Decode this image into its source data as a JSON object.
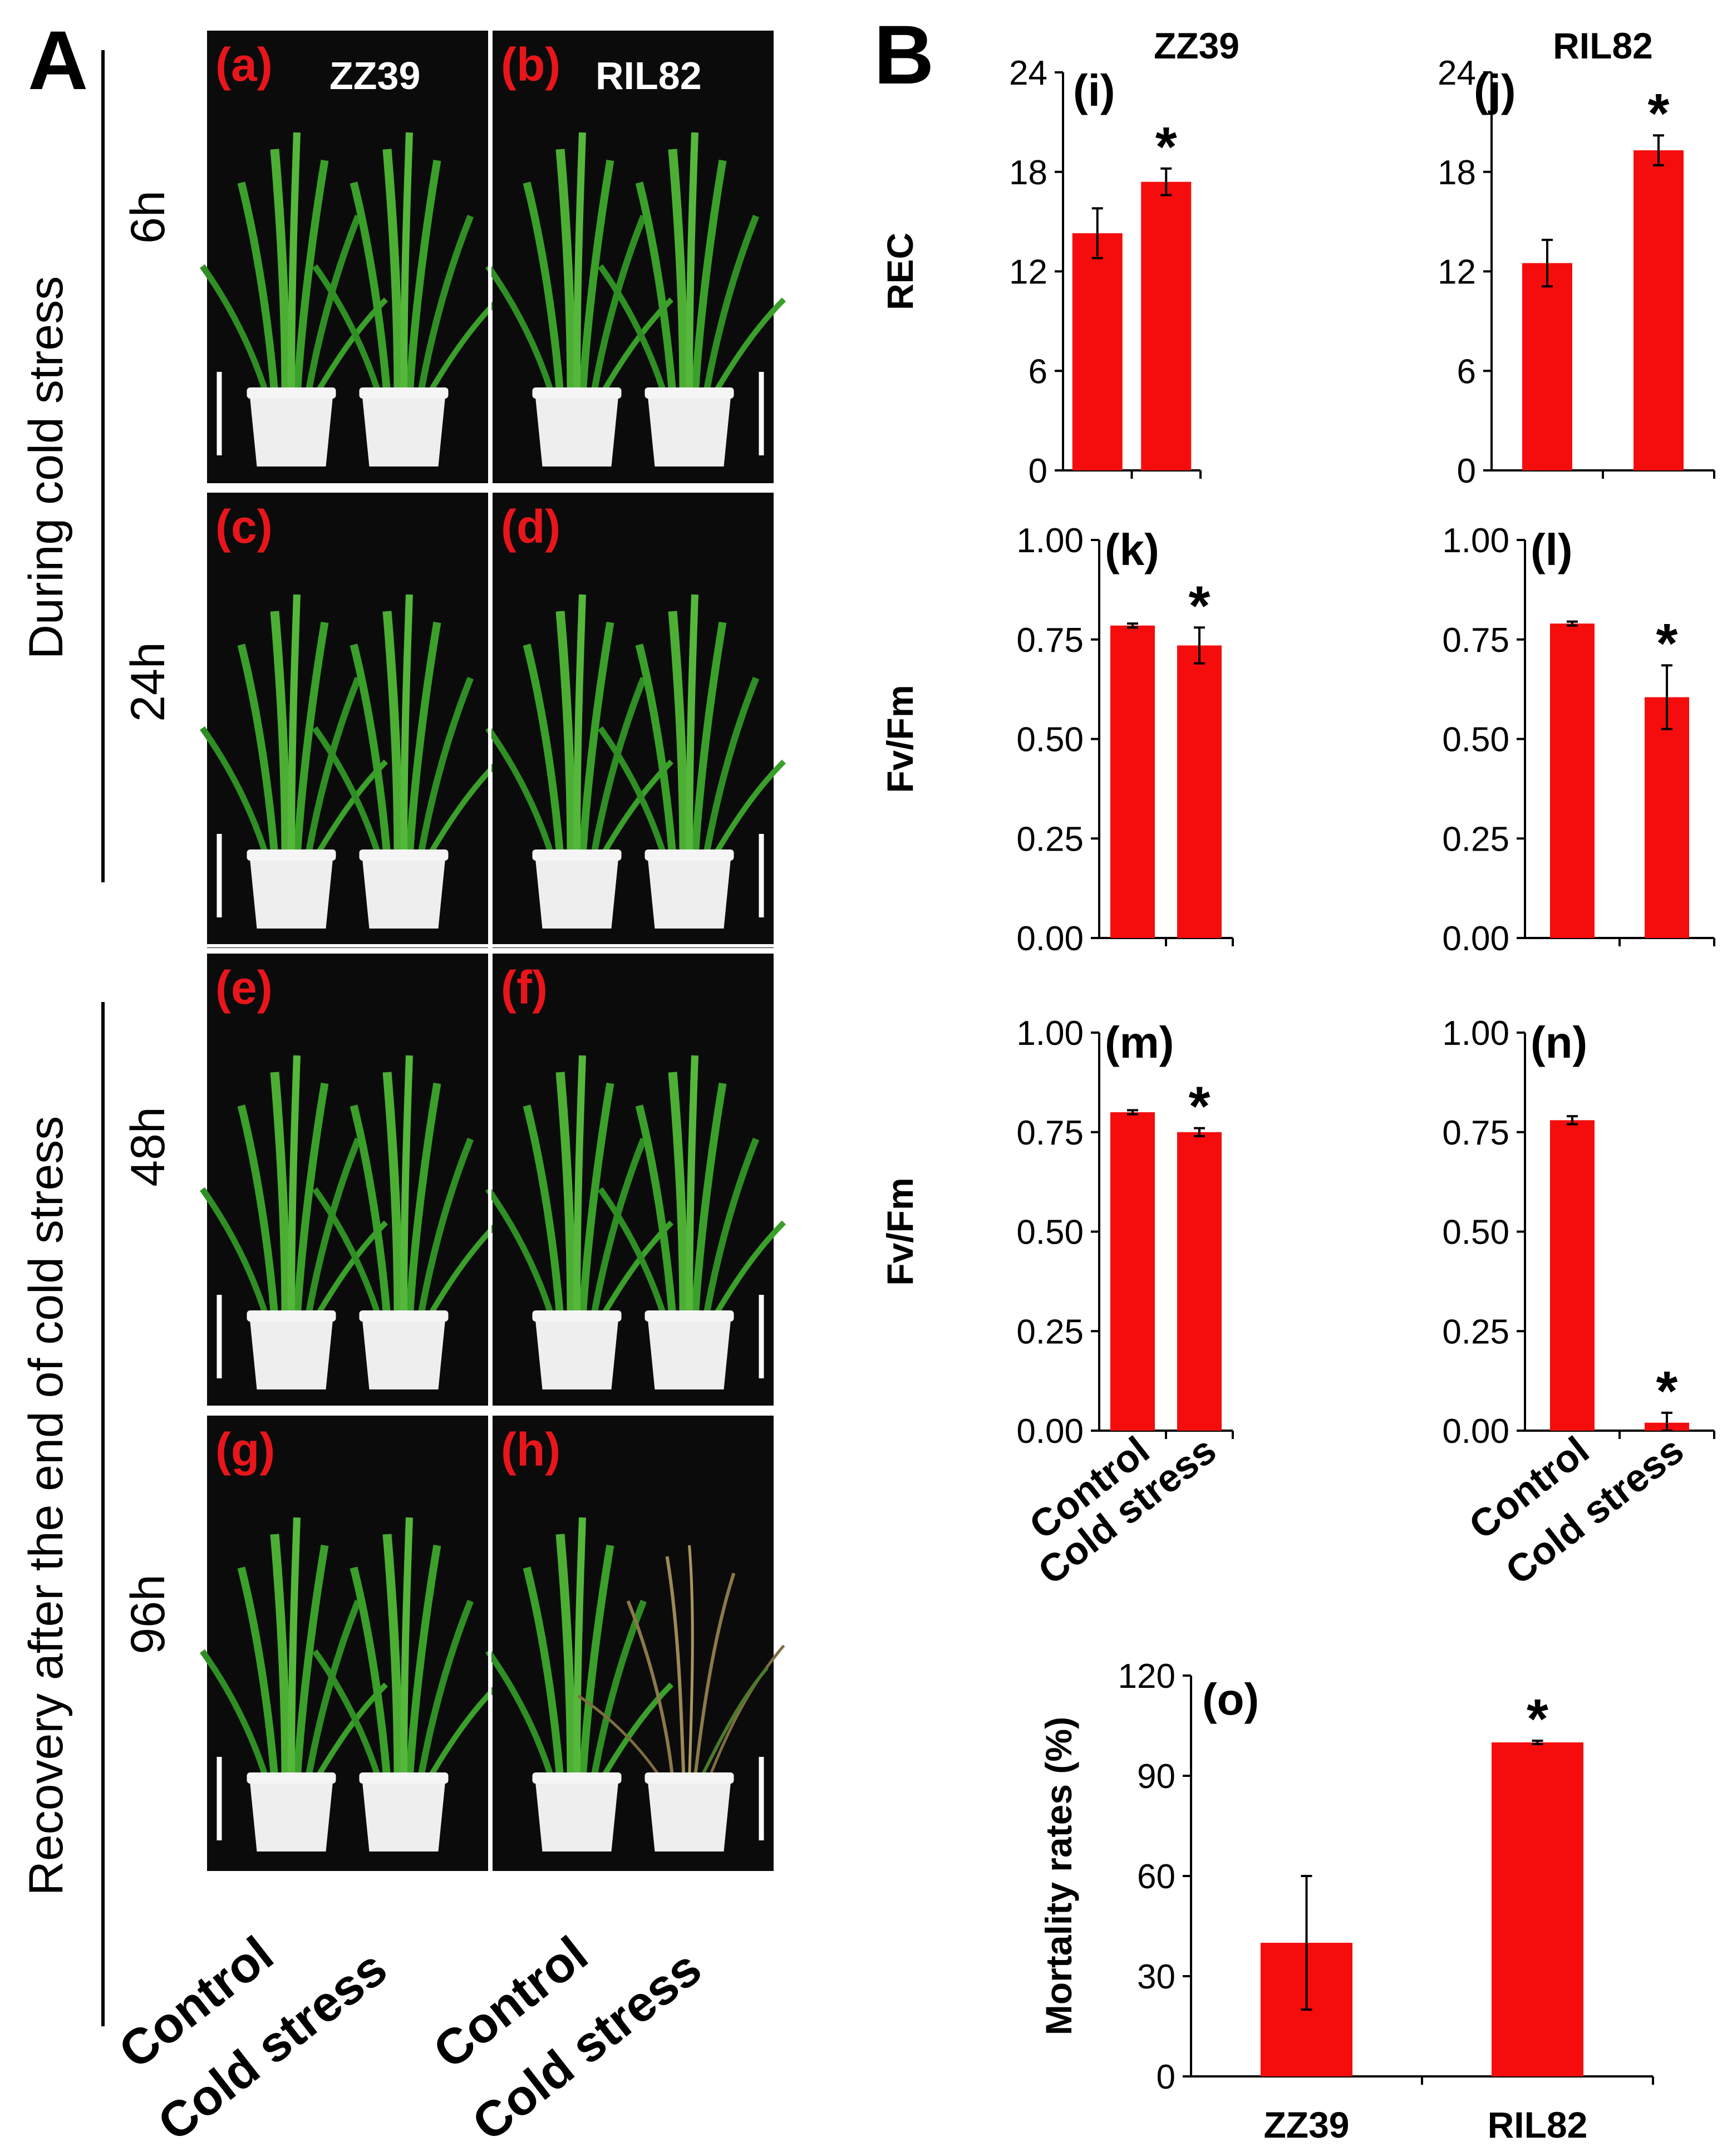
{
  "panel_labels": {
    "A": "A",
    "B": "B"
  },
  "panel_a": {
    "time_groups": [
      {
        "label": "During cold stress",
        "times": [
          "6h",
          "24h"
        ]
      },
      {
        "label": "Recovery after the end of cold stress",
        "times": [
          "48h",
          "96h"
        ]
      }
    ],
    "column_titles": [
      "ZZ39",
      "RIL82"
    ],
    "photo_labels": [
      "(a)",
      "(b)",
      "(c)",
      "(d)",
      "(e)",
      "(f)",
      "(g)",
      "(h)"
    ],
    "x_labels": [
      [
        "Control",
        "Cold stress"
      ],
      [
        "Control",
        "Cold stress"
      ]
    ]
  },
  "colors": {
    "bar": "#f50d0d",
    "label_red": "#e8161b",
    "photo_bg": "#0b0b0b",
    "leaf": "#3a9a2a",
    "pot": "#eeeeee",
    "scale_bar": "#ffffff"
  },
  "chart_data": [
    {
      "id": "i",
      "label": "(i)",
      "type": "bar",
      "title": "ZZ39",
      "ylabel": "REC",
      "categories": [
        "Control",
        "Cold stress"
      ],
      "values": [
        14.3,
        17.4
      ],
      "errors": [
        1.5,
        0.8
      ],
      "significant": [
        false,
        true
      ],
      "significance_marker": "*",
      "ylim": [
        0,
        24
      ],
      "yticks": [
        "0",
        "6",
        "12",
        "18",
        "24"
      ]
    },
    {
      "id": "j",
      "label": "(j)",
      "type": "bar",
      "title": "RIL82",
      "ylabel": "",
      "categories": [
        "Control",
        "Cold stress"
      ],
      "values": [
        12.5,
        19.3
      ],
      "errors": [
        1.4,
        0.9
      ],
      "significant": [
        false,
        true
      ],
      "significance_marker": "*",
      "ylim": [
        0,
        24
      ],
      "yticks": [
        "0",
        "6",
        "12",
        "18",
        "24"
      ]
    },
    {
      "id": "k",
      "label": "(k)",
      "type": "bar",
      "title": "",
      "ylabel": "Fv/Fm",
      "categories": [
        "Control",
        "Cold stress"
      ],
      "values": [
        0.785,
        0.735
      ],
      "errors": [
        0.005,
        0.045
      ],
      "significant": [
        false,
        true
      ],
      "significance_marker": "*",
      "ylim": [
        0,
        1
      ],
      "yticks": [
        "0.00",
        "0.25",
        "0.50",
        "0.75",
        "1.00"
      ]
    },
    {
      "id": "l",
      "label": "(l)",
      "type": "bar",
      "title": "",
      "ylabel": "",
      "categories": [
        "Control",
        "Cold stress"
      ],
      "values": [
        0.79,
        0.605
      ],
      "errors": [
        0.005,
        0.08
      ],
      "significant": [
        false,
        true
      ],
      "significance_marker": "*",
      "ylim": [
        0,
        1
      ],
      "yticks": [
        "0.00",
        "0.25",
        "0.50",
        "0.75",
        "1.00"
      ]
    },
    {
      "id": "m",
      "label": "(m)",
      "type": "bar",
      "title": "",
      "ylabel": "Fv/Fm",
      "categories": [
        "Control",
        "Cold stress"
      ],
      "values": [
        0.8,
        0.75
      ],
      "errors": [
        0.005,
        0.01
      ],
      "significant": [
        false,
        true
      ],
      "significance_marker": "*",
      "ylim": [
        0,
        1
      ],
      "yticks": [
        "0.00",
        "0.25",
        "0.50",
        "0.75",
        "1.00"
      ],
      "x_tick_labels": [
        "Control",
        "Cold stress"
      ]
    },
    {
      "id": "n",
      "label": "(n)",
      "type": "bar",
      "title": "",
      "ylabel": "",
      "categories": [
        "Control",
        "Cold stress"
      ],
      "values": [
        0.78,
        0.02
      ],
      "errors": [
        0.01,
        0.025
      ],
      "significant": [
        false,
        true
      ],
      "significance_marker": "*",
      "ylim": [
        0,
        1
      ],
      "yticks": [
        "0.00",
        "0.25",
        "0.50",
        "0.75",
        "1.00"
      ],
      "x_tick_labels": [
        "Control",
        "Cold stress"
      ]
    },
    {
      "id": "o",
      "label": "(o)",
      "type": "bar",
      "title": "",
      "ylabel": "Mortality rates (%)",
      "categories": [
        "ZZ39",
        "RIL82"
      ],
      "values": [
        40,
        100
      ],
      "errors": [
        20,
        0.5
      ],
      "significant": [
        false,
        true
      ],
      "significance_marker": "*",
      "ylim": [
        0,
        120
      ],
      "yticks": [
        "0",
        "30",
        "60",
        "90",
        "120"
      ],
      "x_tick_labels": [
        "ZZ39",
        "RIL82"
      ]
    }
  ]
}
